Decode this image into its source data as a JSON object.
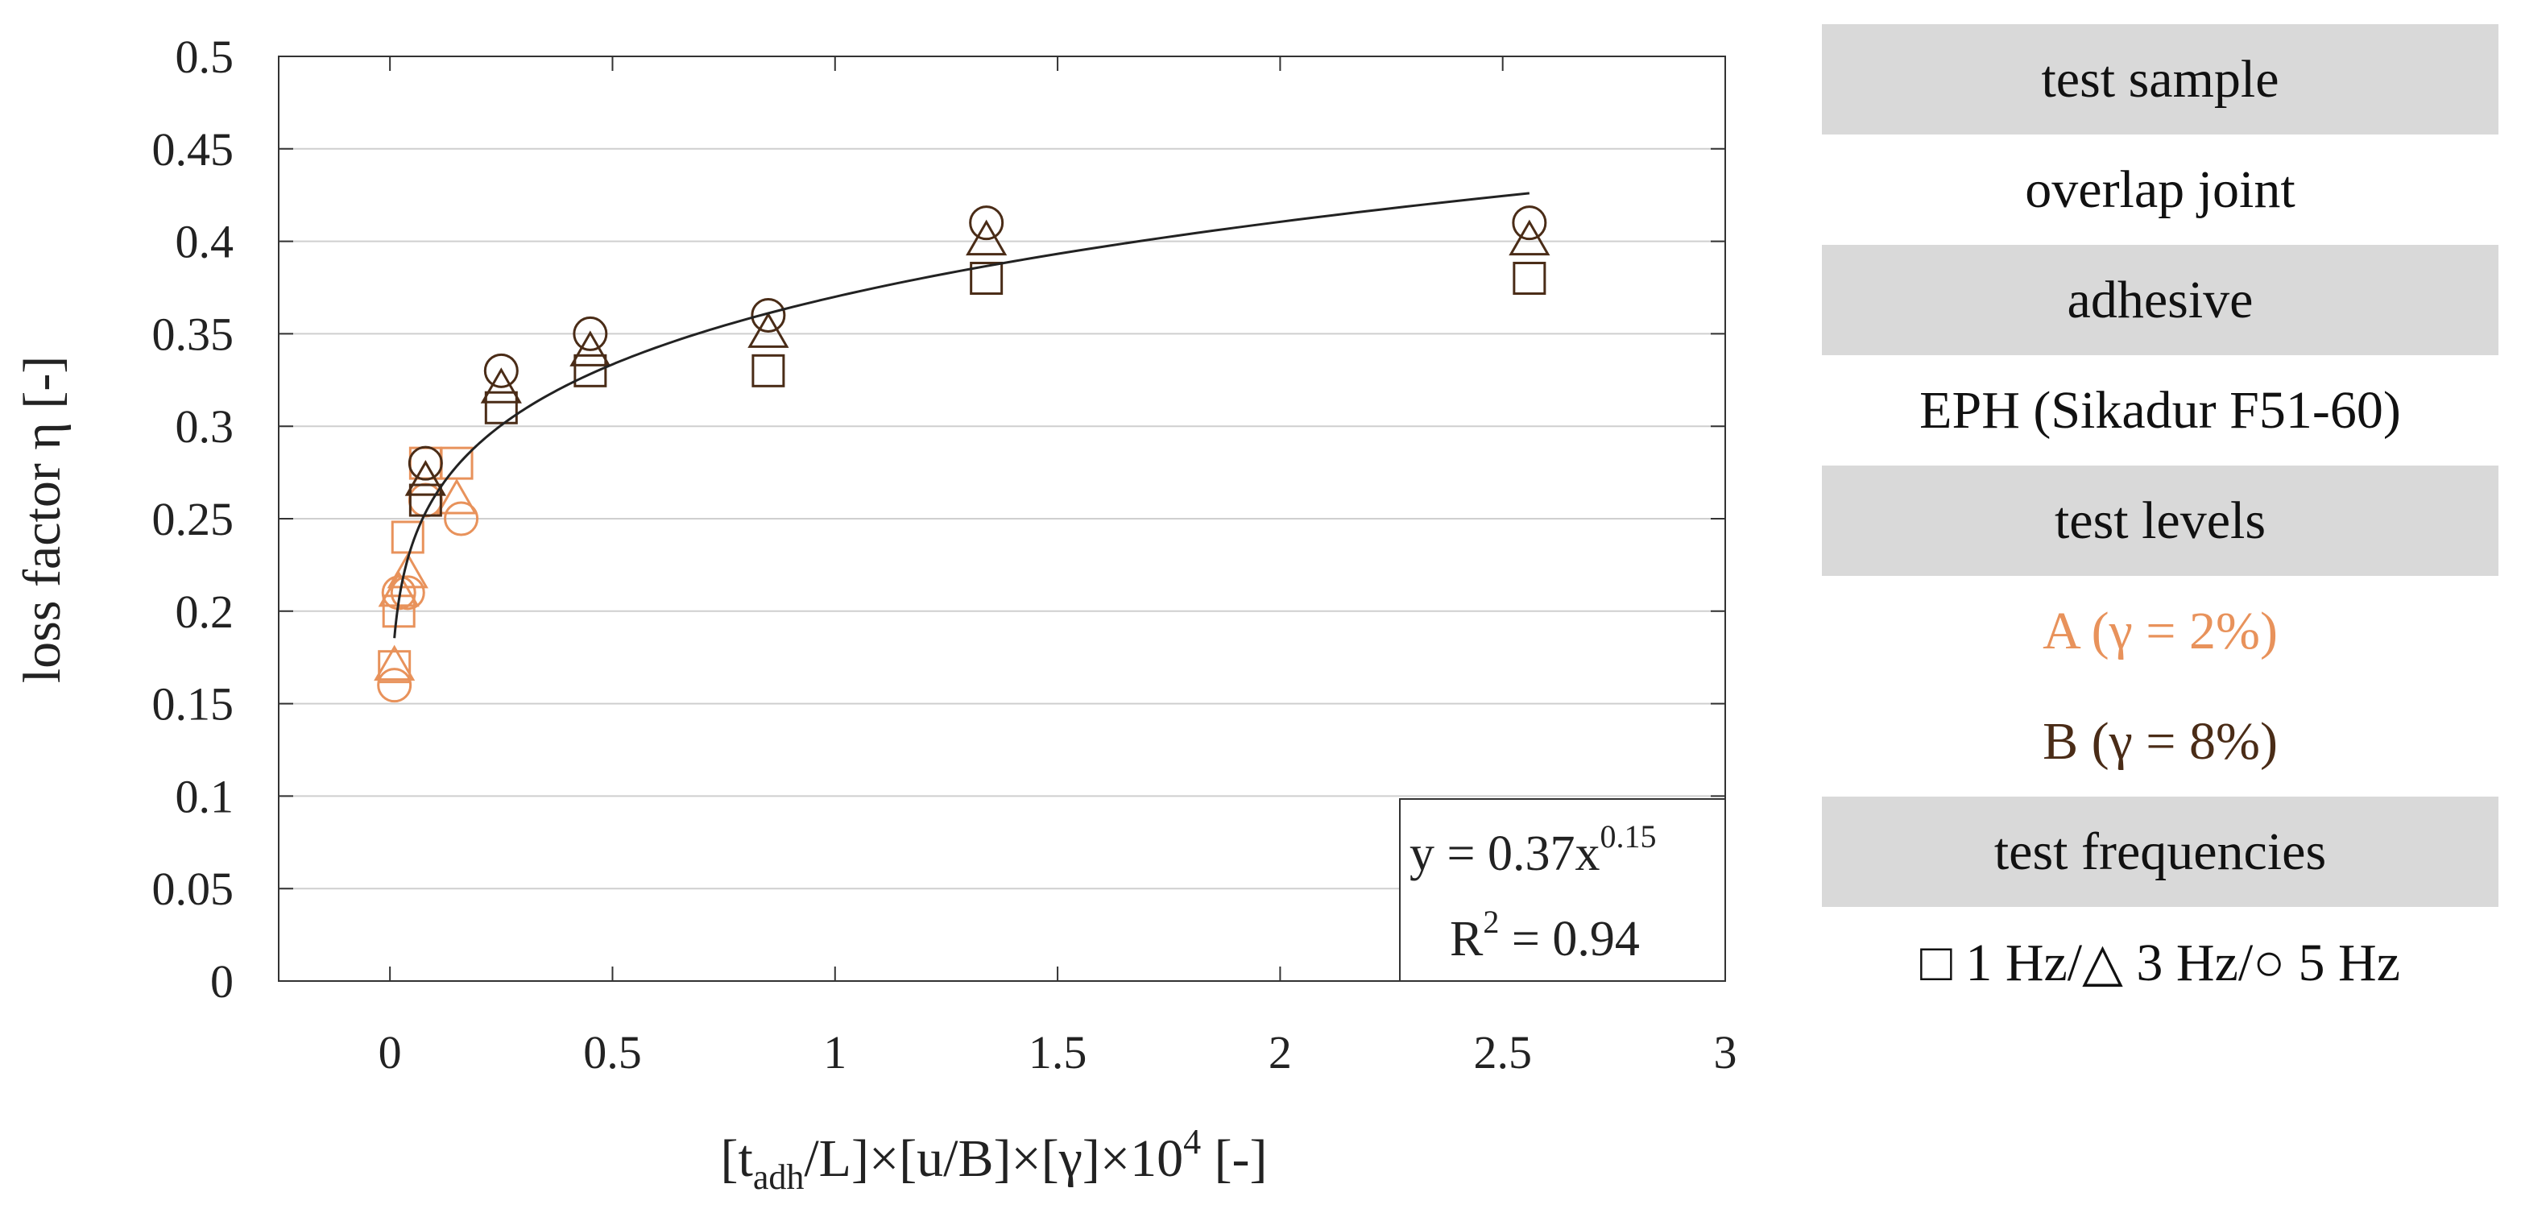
{
  "chart_data": {
    "type": "scatter",
    "ylabel": "loss factor η [-]",
    "xlabel": {
      "main": "[t",
      "sub": "adh",
      "middle": "/L]×[u/B]×[γ]×10",
      "sup": "4",
      "end": " [-]"
    },
    "xlim": [
      -0.25,
      3
    ],
    "ylim": [
      0,
      0.5
    ],
    "x_ticks": [
      "0",
      "0.5",
      "1",
      "1.5",
      "2",
      "2.5",
      "3"
    ],
    "y_ticks": [
      "0",
      "0.05",
      "0.1",
      "0.15",
      "0.2",
      "0.25",
      "0.3",
      "0.35",
      "0.4",
      "0.45",
      "0.5"
    ],
    "grid": "horizontal",
    "colors": {
      "A": "#e8925b",
      "B": "#4a2c17",
      "fit": "#222222"
    },
    "series": [
      {
        "level": "A",
        "marker": "square",
        "x": [
          0.01,
          0.02,
          0.04,
          0.08,
          0.15
        ],
        "y": [
          0.17,
          0.2,
          0.24,
          0.28,
          0.28
        ]
      },
      {
        "level": "A",
        "marker": "triangle",
        "x": [
          0.01,
          0.02,
          0.04,
          0.08,
          0.15
        ],
        "y": [
          0.17,
          0.21,
          0.22,
          0.27,
          0.26
        ]
      },
      {
        "level": "A",
        "marker": "circle",
        "x": [
          0.01,
          0.02,
          0.04,
          0.08,
          0.16
        ],
        "y": [
          0.16,
          0.21,
          0.21,
          0.26,
          0.25
        ]
      },
      {
        "level": "B",
        "marker": "square",
        "x": [
          0.08,
          0.25,
          0.45,
          0.85,
          1.34,
          2.56
        ],
        "y": [
          0.26,
          0.31,
          0.33,
          0.33,
          0.38,
          0.38
        ]
      },
      {
        "level": "B",
        "marker": "triangle",
        "x": [
          0.08,
          0.25,
          0.45,
          0.85,
          1.34,
          2.56
        ],
        "y": [
          0.27,
          0.32,
          0.34,
          0.35,
          0.4,
          0.4
        ]
      },
      {
        "level": "B",
        "marker": "circle",
        "x": [
          0.08,
          0.25,
          0.45,
          0.85,
          1.34,
          2.56
        ],
        "y": [
          0.28,
          0.33,
          0.35,
          0.36,
          0.41,
          0.41
        ]
      }
    ],
    "fit": {
      "a": 0.37,
      "b": 0.15,
      "x_range": [
        0.01,
        2.56
      ]
    },
    "annotation": {
      "eq_main": "y = 0.37x",
      "eq_sup": "0.15",
      "r2_main": "R",
      "r2_sup": "2",
      "r2_end": " = 0.94"
    }
  },
  "legend": {
    "rows": [
      {
        "text": "test sample",
        "kind": "header"
      },
      {
        "text": "overlap joint",
        "kind": "value"
      },
      {
        "text": "adhesive",
        "kind": "header"
      },
      {
        "text": "EPH (Sikadur F51-60)",
        "kind": "value"
      },
      {
        "text": "test levels",
        "kind": "header"
      },
      {
        "text": "A (γ = 2%)",
        "kind": "level-a"
      },
      {
        "text": "B (γ = 8%)",
        "kind": "level-b"
      },
      {
        "text": "test frequencies",
        "kind": "header"
      },
      {
        "text": "□ 1 Hz/△ 3 Hz/○ 5 Hz",
        "kind": "value"
      }
    ]
  }
}
